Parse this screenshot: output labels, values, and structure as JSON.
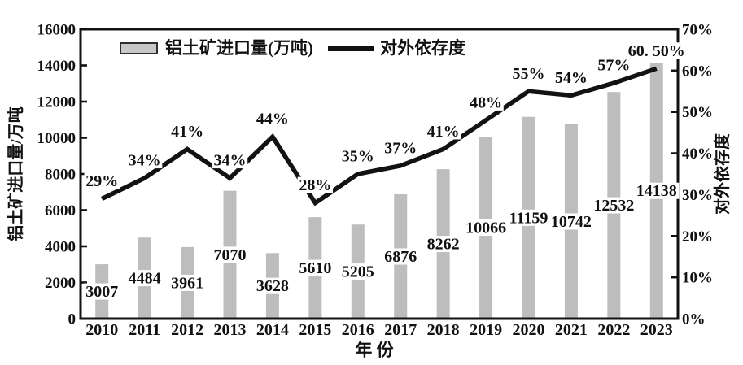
{
  "colors": {
    "bar_fill": "#bdbdbd",
    "legend_box_fill": "#c8c8c8",
    "line": "#121212",
    "text": "#111111",
    "background": "#ffffff"
  },
  "legend": {
    "bar_series_label": "铝土矿进口量(万吨)",
    "line_series_label": "对外依存度"
  },
  "chart_data": {
    "type": "bar+line combo",
    "title": "",
    "grid": false,
    "legend_position": "top-inside",
    "categories": [
      "2010",
      "2011",
      "2012",
      "2013",
      "2014",
      "2015",
      "2016",
      "2017",
      "2018",
      "2019",
      "2020",
      "2021",
      "2022",
      "2023"
    ],
    "series": [
      {
        "name": "铝土矿进口量(万吨)",
        "type": "bar",
        "axis": "left",
        "values": [
          3007,
          4484,
          3961,
          7070,
          3628,
          5610,
          5205,
          6876,
          8262,
          10066,
          11159,
          10742,
          12532,
          14138
        ],
        "value_labels": [
          "3007",
          "4484",
          "3961",
          "7070",
          "3628",
          "5610",
          "5205",
          "6876",
          "8262",
          "10066",
          "11159",
          "10742",
          "12532",
          "14138"
        ]
      },
      {
        "name": "对外依存度",
        "type": "line",
        "axis": "right",
        "values": [
          29,
          34,
          41,
          34,
          44,
          28,
          35,
          37,
          41,
          48,
          55,
          54,
          57,
          60.5
        ],
        "value_labels": [
          "29%",
          "34%",
          "41%",
          "34%",
          "44%",
          "28%",
          "35%",
          "37%",
          "41%",
          "48%",
          "55%",
          "54%",
          "57%",
          "60. 50%"
        ]
      }
    ],
    "left_axis": {
      "label": "铝土矿进口量/万吨",
      "min": 0,
      "max": 16000,
      "tick_step": 2000,
      "tick_labels": [
        "0",
        "2000",
        "4000",
        "6000",
        "8000",
        "10000",
        "12000",
        "14000",
        "16000"
      ]
    },
    "right_axis": {
      "label": "对外依存度",
      "min": 0,
      "max": 70,
      "tick_step": 10,
      "tick_labels": [
        "0%",
        "10%",
        "20%",
        "30%",
        "40%",
        "50%",
        "60%",
        "70%"
      ]
    },
    "x_axis": {
      "label": "年 份"
    }
  }
}
